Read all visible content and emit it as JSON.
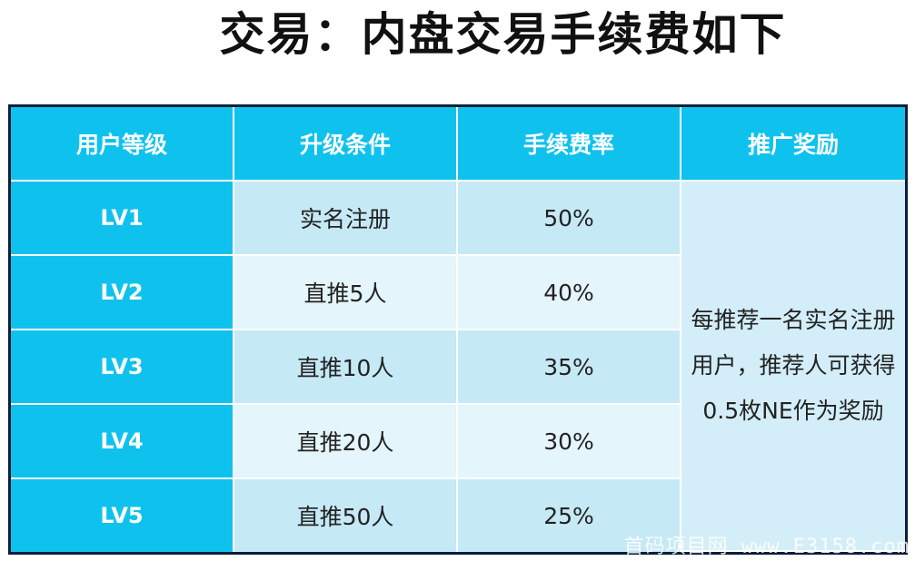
{
  "title": "交易：内盘交易手续费如下",
  "table": {
    "headers": [
      "用户等级",
      "升级条件",
      "手续费率",
      "推广奖励"
    ],
    "rows": [
      {
        "level": "LV1",
        "condition": "实名注册",
        "fee": "50%"
      },
      {
        "level": "LV2",
        "condition": "直推5人",
        "fee": "40%"
      },
      {
        "level": "LV3",
        "condition": "直推10人",
        "fee": "35%"
      },
      {
        "level": "LV4",
        "condition": "直推20人",
        "fee": "30%"
      },
      {
        "level": "LV5",
        "condition": "直推50人",
        "fee": "25%"
      }
    ],
    "reward": "每推荐一名实名注册用户，推荐人可获得0.5枚NE作为奖励"
  },
  "watermark": "首码项目网 www.E3158.com",
  "colors": {
    "header_bg": "#0fc2ee",
    "row_odd_bg": "#c6e9f6",
    "row_even_bg": "#e4f5fb",
    "border_dark": "#0b1d3a"
  }
}
